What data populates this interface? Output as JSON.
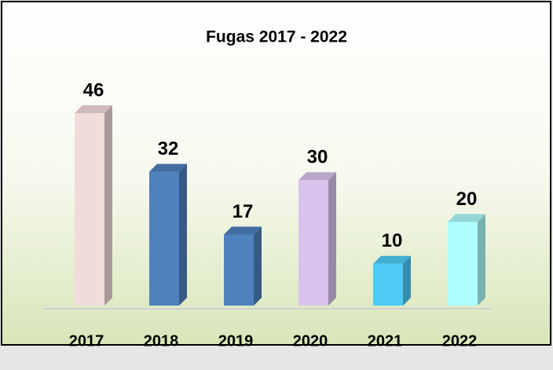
{
  "chart_data": {
    "type": "bar3d",
    "title": "Fugas 2017 - 2022",
    "categories": [
      "2017",
      "2018",
      "2019",
      "2020",
      "2021",
      "2022"
    ],
    "values": [
      46,
      32,
      17,
      30,
      10,
      20
    ],
    "colors": [
      "#f2dcdb",
      "#4f81bd",
      "#4f81bd",
      "#d9c3ec",
      "#4dcbf5",
      "#aefcfc"
    ]
  }
}
